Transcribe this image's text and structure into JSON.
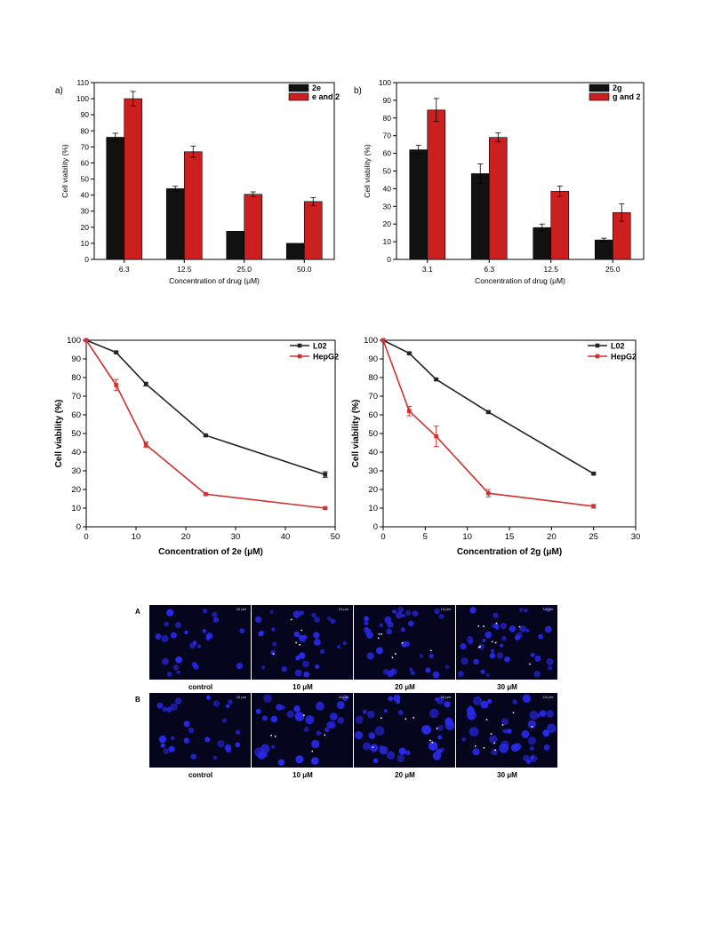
{
  "colors": {
    "black_series": "#111111",
    "red_series": "#cc1f1f",
    "line_black": "#222222",
    "line_red": "#d23030",
    "micro_bg": "#05051e",
    "nucleus": "#2a2af0"
  },
  "chart_data": [
    {
      "id": "a",
      "type": "bar",
      "panel_label": "a)",
      "categories": [
        "6.3",
        "12.5",
        "25.0",
        "50.0"
      ],
      "series": [
        {
          "name": "2e",
          "color": "#111111",
          "values": [
            76,
            44,
            17.5,
            10
          ],
          "errors": [
            2.5,
            1.5,
            0,
            0
          ]
        },
        {
          "name": "e and 2",
          "color": "#cc1f1f",
          "values": [
            100,
            67,
            40.5,
            36
          ],
          "errors": [
            4.5,
            3.5,
            1.5,
            2.5
          ]
        }
      ],
      "xlabel": "Concentration of drug (μM)",
      "ylabel": "Cell viability (%)",
      "ylim": [
        0,
        110
      ],
      "yticks": [
        0,
        10,
        20,
        30,
        40,
        50,
        60,
        70,
        80,
        90,
        100,
        110
      ],
      "legend": "top-right",
      "grid": false
    },
    {
      "id": "b",
      "type": "bar",
      "panel_label": "b)",
      "categories": [
        "3.1",
        "6.3",
        "12.5",
        "25.0"
      ],
      "series": [
        {
          "name": "2g",
          "color": "#111111",
          "values": [
            62,
            48.5,
            18,
            11
          ],
          "errors": [
            2.5,
            5.5,
            2,
            1
          ]
        },
        {
          "name": "g and 2",
          "color": "#cc1f1f",
          "values": [
            84.5,
            69,
            38.5,
            26.5
          ],
          "errors": [
            6.5,
            2.5,
            3,
            5
          ]
        }
      ],
      "xlabel": "Concentration of drug (μM)",
      "ylabel": "Cell viability (%)",
      "ylim": [
        0,
        100
      ],
      "yticks": [
        0,
        10,
        20,
        30,
        40,
        50,
        60,
        70,
        80,
        90,
        100
      ],
      "legend": "top-right",
      "grid": false
    },
    {
      "id": "c",
      "type": "line",
      "series": [
        {
          "name": "L02",
          "color": "#222222",
          "x": [
            0,
            6,
            12,
            24,
            48
          ],
          "y": [
            100,
            93.5,
            76.5,
            49,
            28
          ],
          "errors": [
            0,
            0.5,
            1,
            0.5,
            1.5
          ]
        },
        {
          "name": "HepG2",
          "color": "#d23030",
          "x": [
            0,
            6,
            12,
            24,
            48
          ],
          "y": [
            100,
            76,
            44,
            17.5,
            10
          ],
          "errors": [
            0,
            3,
            1.5,
            0.5,
            0.5
          ]
        }
      ],
      "xlabel": "Concentration of 2e (μM)",
      "ylabel": "Cell viability (%)",
      "xlim": [
        0,
        50
      ],
      "xticks": [
        0,
        10,
        20,
        30,
        40,
        50
      ],
      "ylim": [
        0,
        100
      ],
      "yticks": [
        0,
        10,
        20,
        30,
        40,
        50,
        60,
        70,
        80,
        90,
        100
      ],
      "legend": "top-right",
      "grid": false
    },
    {
      "id": "d",
      "type": "line",
      "series": [
        {
          "name": "L02",
          "color": "#222222",
          "x": [
            0,
            3.1,
            6.3,
            12.5,
            25
          ],
          "y": [
            100,
            93,
            79,
            61.5,
            28.5
          ],
          "errors": [
            0,
            0.5,
            0.5,
            0.5,
            0.5
          ]
        },
        {
          "name": "HepG2",
          "color": "#d23030",
          "x": [
            0,
            3.1,
            6.3,
            12.5,
            25
          ],
          "y": [
            100,
            62,
            48.5,
            18,
            11
          ],
          "errors": [
            0,
            2.5,
            5.5,
            2,
            1
          ]
        }
      ],
      "xlabel": "Concentration of 2g (μM)",
      "ylabel": "Cell viability (%)",
      "xlim": [
        0,
        30
      ],
      "xticks": [
        0,
        5,
        10,
        15,
        20,
        25,
        30
      ],
      "ylim": [
        0,
        100
      ],
      "yticks": [
        0,
        10,
        20,
        30,
        40,
        50,
        60,
        70,
        80,
        90,
        100
      ],
      "legend": "top-right",
      "grid": false
    }
  ],
  "micrographs": {
    "rows": [
      {
        "label": "A",
        "captions": [
          "control",
          "10 μM",
          "20 μM",
          "30 μM"
        ]
      },
      {
        "label": "B",
        "captions": [
          "control",
          "10 μM",
          "20 μM",
          "30 μM"
        ]
      }
    ],
    "scale_text": "10 μm"
  }
}
